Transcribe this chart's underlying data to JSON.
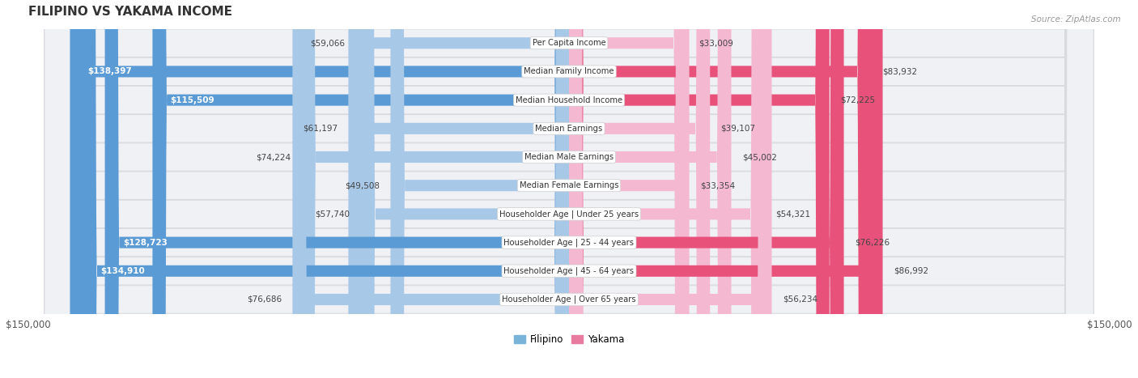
{
  "title": "FILIPINO VS YAKAMA INCOME",
  "source": "Source: ZipAtlas.com",
  "categories": [
    "Per Capita Income",
    "Median Family Income",
    "Median Household Income",
    "Median Earnings",
    "Median Male Earnings",
    "Median Female Earnings",
    "Householder Age | Under 25 years",
    "Householder Age | 25 - 44 years",
    "Householder Age | 45 - 64 years",
    "Householder Age | Over 65 years"
  ],
  "filipino_values": [
    59066,
    138397,
    115509,
    61197,
    74224,
    49508,
    57740,
    128723,
    134910,
    76686
  ],
  "yakama_values": [
    33009,
    83932,
    72225,
    39107,
    45002,
    33354,
    54321,
    76226,
    86992,
    56234
  ],
  "filipino_labels": [
    "$59,066",
    "$138,397",
    "$115,509",
    "$61,197",
    "$74,224",
    "$49,508",
    "$57,740",
    "$128,723",
    "$134,910",
    "$76,686"
  ],
  "yakama_labels": [
    "$33,009",
    "$83,932",
    "$72,225",
    "$39,107",
    "$45,002",
    "$33,354",
    "$54,321",
    "$76,226",
    "$86,992",
    "$56,234"
  ],
  "max_value": 150000,
  "filipino_color_light": "#a8c8e8",
  "filipino_color_dark": "#5b9bd5",
  "yakama_color_light": "#f4b8d0",
  "yakama_color_dark": "#e8527a",
  "row_bg_color": "#f0f1f5",
  "row_border_color": "#d8dae0",
  "background_color": "#ffffff",
  "label_outside_color": "#444444",
  "label_inside_color": "#ffffff",
  "dark_threshold_filipino": 90000,
  "dark_threshold_yakama": 65000,
  "inside_label_threshold": 15000,
  "legend_color_filipino": "#7ab3d8",
  "legend_color_yakama": "#e87aa0"
}
